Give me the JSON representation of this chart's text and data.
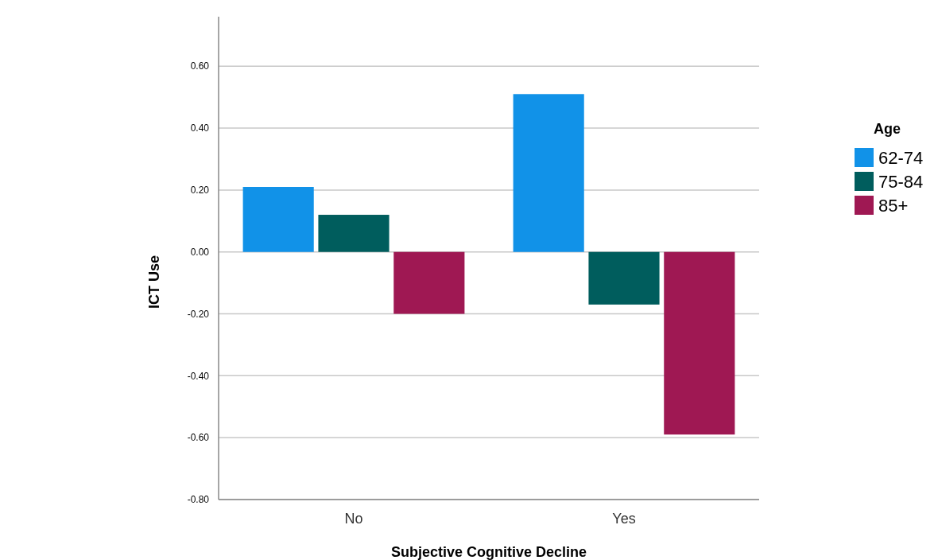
{
  "chart_data": {
    "type": "bar",
    "xlabel": "Subjective Cognitive Decline",
    "ylabel": "ICT Use",
    "legend_title": "Age",
    "categories": [
      "No",
      "Yes"
    ],
    "series": [
      {
        "name": "62-74",
        "color": "#1192e8",
        "values": [
          0.21,
          0.51
        ]
      },
      {
        "name": "75-84",
        "color": "#005d5d",
        "values": [
          0.12,
          -0.17
        ]
      },
      {
        "name": "85+",
        "color": "#9f1853",
        "values": [
          -0.2,
          -0.59
        ]
      }
    ],
    "ylim": [
      -0.8,
      0.76
    ],
    "yticks": [
      {
        "value": -0.8,
        "label": "-0.80"
      },
      {
        "value": -0.6,
        "label": "-0.60"
      },
      {
        "value": -0.4,
        "label": "-0.40"
      },
      {
        "value": -0.2,
        "label": "-0.20"
      },
      {
        "value": 0,
        "label": "0.00"
      },
      {
        "value": 0.2,
        "label": "0.20"
      },
      {
        "value": 0.4,
        "label": "0.40"
      },
      {
        "value": 0.6,
        "label": "0.60"
      }
    ],
    "grid": "y",
    "legend": "right"
  }
}
